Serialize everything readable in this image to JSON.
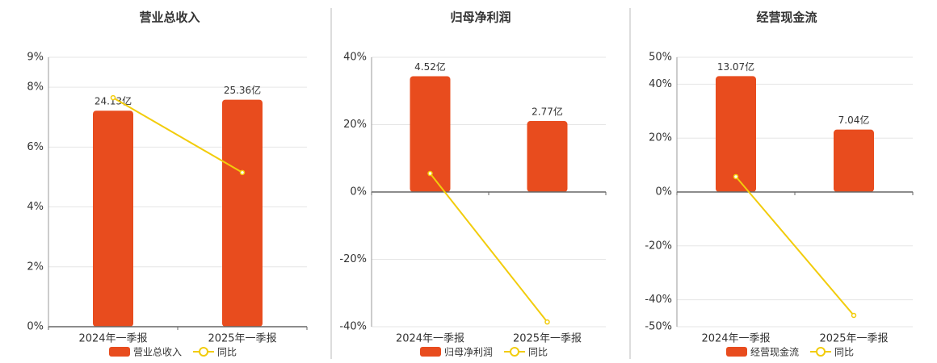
{
  "chart_data": [
    {
      "type": "combo",
      "title": "营业总收入",
      "categories": [
        "2024年一季报",
        "2025年一季报"
      ],
      "series": [
        {
          "name": "营业总收入",
          "type": "bar",
          "axis": "y2",
          "color": "#e84c1e",
          "values": [
            24.13,
            25.36
          ],
          "value_labels": [
            "24.13亿",
            "25.36亿"
          ]
        },
        {
          "name": "同比",
          "type": "line",
          "color": "#f2cc0c",
          "values": [
            7.65,
            5.15
          ]
        }
      ],
      "ylim": [
        0,
        9
      ],
      "yticks": [
        {
          "value": 0,
          "label": "0%"
        },
        {
          "value": 2,
          "label": "2%"
        },
        {
          "value": 4,
          "label": "4%"
        },
        {
          "value": 6,
          "label": "6%"
        },
        {
          "value": 8,
          "label": "8%"
        },
        {
          "value": 9,
          "label": "9%"
        }
      ],
      "y2lim": [
        0,
        30.1
      ]
    },
    {
      "type": "combo",
      "title": "归母净利润",
      "categories": [
        "2024年一季报",
        "2025年一季报"
      ],
      "series": [
        {
          "name": "归母净利润",
          "type": "bar",
          "axis": "y2",
          "color": "#e84c1e",
          "values": [
            4.52,
            2.77
          ],
          "value_labels": [
            "4.52亿",
            "2.77亿"
          ]
        },
        {
          "name": "同比",
          "type": "line",
          "color": "#f2cc0c",
          "values": [
            5.5,
            -38.6
          ]
        }
      ],
      "ylim": [
        -40,
        40
      ],
      "yticks": [
        {
          "value": -40,
          "label": "-40%"
        },
        {
          "value": -20,
          "label": "-20%"
        },
        {
          "value": 0,
          "label": "0%"
        },
        {
          "value": 20,
          "label": "20%"
        },
        {
          "value": 40,
          "label": "40%"
        }
      ],
      "y2lim": [
        -5.26,
        5.26
      ]
    },
    {
      "type": "combo",
      "title": "经营现金流",
      "categories": [
        "2024年一季报",
        "2025年一季报"
      ],
      "series": [
        {
          "name": "经营现金流",
          "type": "bar",
          "axis": "y2",
          "color": "#e84c1e",
          "values": [
            13.07,
            7.04
          ],
          "value_labels": [
            "13.07亿",
            "7.04亿"
          ]
        },
        {
          "name": "同比",
          "type": "line",
          "color": "#f2cc0c",
          "values": [
            5.7,
            -45.8
          ]
        }
      ],
      "ylim": [
        -50,
        50
      ],
      "yticks": [
        {
          "value": -50,
          "label": "-50%"
        },
        {
          "value": -40,
          "label": "-40%"
        },
        {
          "value": -20,
          "label": "-20%"
        },
        {
          "value": 0,
          "label": "0%"
        },
        {
          "value": 20,
          "label": "20%"
        },
        {
          "value": 40,
          "label": "40%"
        },
        {
          "value": 50,
          "label": "50%"
        }
      ],
      "y2lim": [
        -15.2,
        15.2
      ]
    }
  ]
}
